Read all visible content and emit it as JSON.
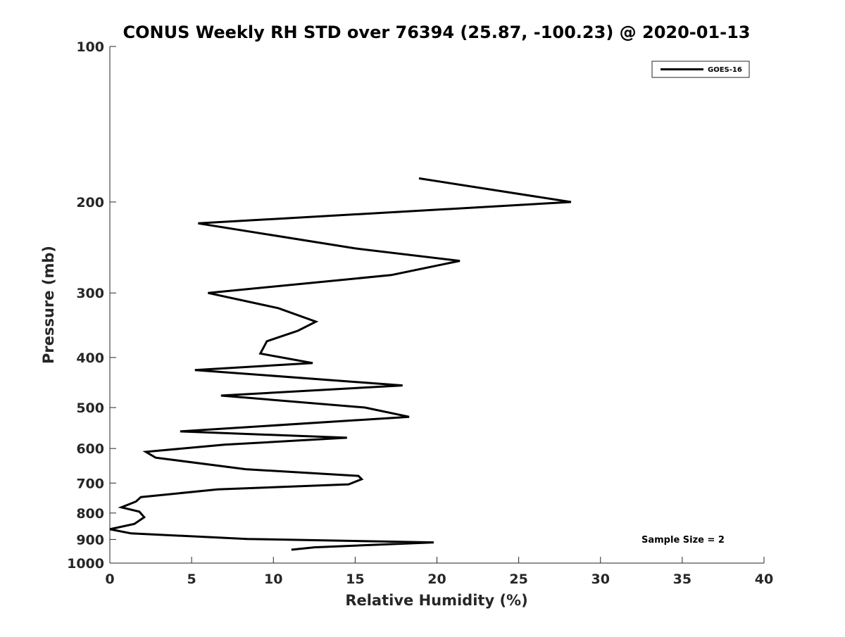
{
  "chart_data": {
    "type": "line",
    "title": "CONUS Weekly RH STD over 76394 (25.87, -100.23) @ 2020-01-13",
    "xlabel": "Relative Humidity (%)",
    "ylabel": "Pressure (mb)",
    "xlim": [
      0,
      40
    ],
    "ylim": [
      1000,
      100
    ],
    "y_scale": "log",
    "y_reversed": true,
    "x_ticks": [
      "0",
      "5",
      "10",
      "15",
      "20",
      "25",
      "30",
      "35",
      "40"
    ],
    "y_ticks": [
      "100",
      "200",
      "300",
      "400",
      "500",
      "600",
      "700",
      "800",
      "900",
      "1000"
    ],
    "grid": false,
    "legend_position": "top-right",
    "annotation": "Sample Size = 2",
    "series": [
      {
        "name": "GOES-16",
        "color": "#000000",
        "x": [
          18.9,
          28.2,
          5.4,
          15.0,
          21.4,
          17.2,
          6.0,
          10.3,
          12.6,
          11.5,
          9.6,
          9.2,
          12.4,
          5.2,
          17.9,
          6.8,
          15.6,
          18.3,
          4.3,
          14.5,
          7.0,
          2.2,
          2.8,
          8.3,
          15.2,
          15.4,
          14.6,
          6.6,
          1.9,
          1.6,
          0.7,
          1.8,
          2.1,
          1.5,
          0.0,
          1.3,
          8.4,
          19.8,
          12.5,
          11.1
        ],
        "y": [
          180,
          200,
          220,
          246,
          260,
          277,
          300,
          321,
          341,
          355,
          372,
          393,
          410,
          423,
          453,
          474,
          500,
          521,
          556,
          572,
          590,
          609,
          625,
          658,
          678,
          688,
          704,
          720,
          745,
          760,
          780,
          795,
          815,
          840,
          860,
          876,
          898,
          912,
          932,
          942
        ]
      }
    ]
  }
}
